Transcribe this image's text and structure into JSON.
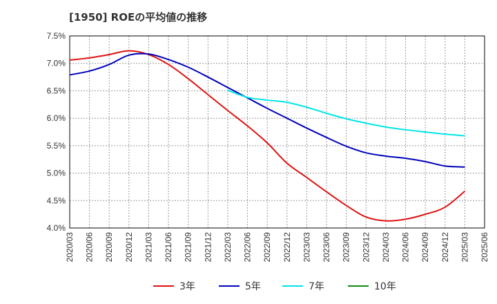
{
  "chart_data": {
    "type": "line",
    "title": "[1950]  ROEの平均値の推移",
    "xlabel": "",
    "ylabel": "",
    "x": [
      "2020/03",
      "2020/06",
      "2020/09",
      "2020/12",
      "2021/03",
      "2021/06",
      "2021/09",
      "2021/12",
      "2022/03",
      "2022/06",
      "2022/09",
      "2022/12",
      "2023/03",
      "2023/06",
      "2023/09",
      "2023/12",
      "2024/03",
      "2024/06",
      "2024/09",
      "2024/12",
      "2025/03",
      "2025/06"
    ],
    "y_ticks": [
      "4.0%",
      "4.5%",
      "5.0%",
      "5.5%",
      "6.0%",
      "6.5%",
      "7.0%",
      "7.5%"
    ],
    "ylim": [
      4.0,
      7.5
    ],
    "grid": true,
    "legend_position": "bottom",
    "series": [
      {
        "name": "3年",
        "color": "#dd1111",
        "values": [
          7.06,
          7.1,
          7.16,
          7.23,
          7.16,
          6.98,
          6.72,
          6.43,
          6.14,
          5.86,
          5.55,
          5.18,
          4.92,
          4.66,
          4.41,
          4.2,
          4.13,
          4.16,
          4.25,
          4.38,
          4.67,
          null
        ]
      },
      {
        "name": "5年",
        "color": "#0000bb",
        "values": [
          6.79,
          6.86,
          6.98,
          7.15,
          7.17,
          7.07,
          6.93,
          6.75,
          6.56,
          6.37,
          6.18,
          6.0,
          5.82,
          5.65,
          5.49,
          5.37,
          5.31,
          5.27,
          5.21,
          5.13,
          5.11,
          null
        ]
      },
      {
        "name": "7年",
        "color": "#00e5e5",
        "values": [
          null,
          null,
          null,
          null,
          null,
          null,
          null,
          null,
          6.51,
          6.38,
          6.33,
          6.29,
          6.2,
          6.09,
          5.99,
          5.91,
          5.84,
          5.79,
          5.75,
          5.71,
          5.68,
          null
        ]
      },
      {
        "name": "10年",
        "color": "#118811",
        "values": [
          null,
          null,
          null,
          null,
          null,
          null,
          null,
          null,
          null,
          null,
          null,
          null,
          null,
          null,
          null,
          null,
          null,
          null,
          null,
          null,
          null,
          null
        ]
      }
    ]
  }
}
